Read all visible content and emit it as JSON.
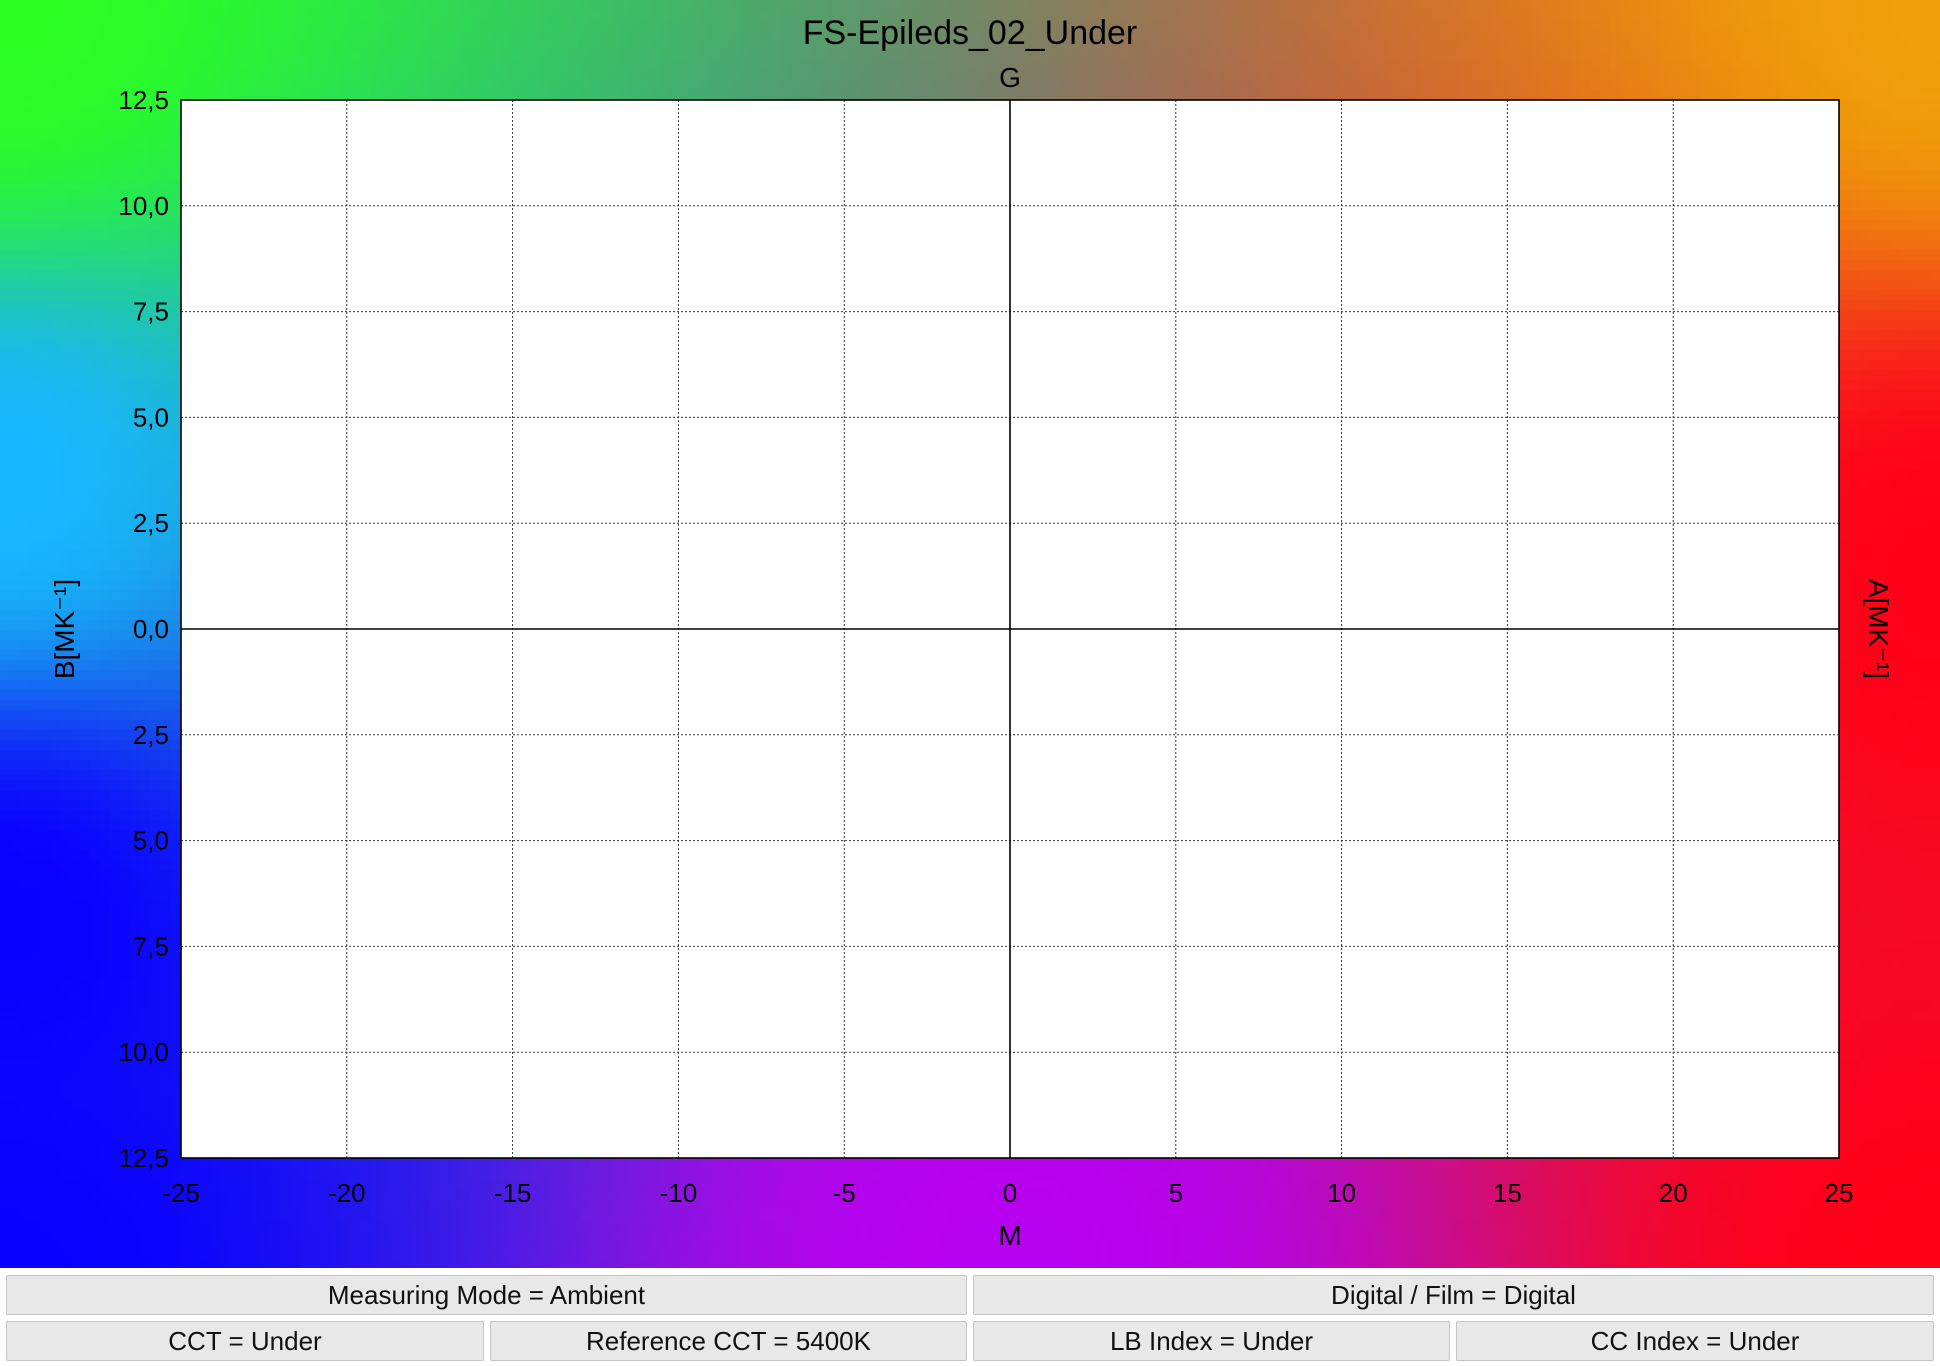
{
  "chart_data": {
    "type": "scatter",
    "title": "FS-Epileds_02_Under",
    "top_label": "G",
    "xlabel": "M",
    "ylabel_left": "B[MK⁻¹]",
    "ylabel_right": "A[MK⁻¹]",
    "xlim": [
      -25,
      25
    ],
    "ylim": [
      -12.5,
      12.5
    ],
    "x_ticks": [
      -25,
      -20,
      -15,
      -10,
      -5,
      0,
      5,
      10,
      15,
      20,
      25
    ],
    "x_tick_labels": [
      "-25",
      "-20",
      "-15",
      "-10",
      "-5",
      "0",
      "5",
      "10",
      "15",
      "20",
      "25"
    ],
    "y_ticks": [
      12.5,
      10,
      7.5,
      5,
      2.5,
      0,
      -2.5,
      -5,
      -7.5,
      -10,
      -12.5
    ],
    "y_tick_labels": [
      "12,5",
      "10,0",
      "7,5",
      "5,0",
      "2,5",
      "0,0",
      "2,5",
      "5,0",
      "7,5",
      "10,0",
      "12,5"
    ],
    "grid": true,
    "series": [],
    "background_colors": {
      "top_left": "#2aff22",
      "top_right": "#f0a008",
      "left_mid": "#18b8ff",
      "left_bottom": "#0a00ff",
      "right": "#ff0018",
      "bottom_mid": "#b800f0"
    }
  },
  "info": {
    "measuring_mode": "Measuring Mode = Ambient",
    "digital_film": "Digital / Film = Digital",
    "cct": "CCT = Under",
    "reference_cct": "Reference CCT = 5400K",
    "lb_index": "LB Index = Under",
    "cc_index": "CC Index = Under"
  }
}
